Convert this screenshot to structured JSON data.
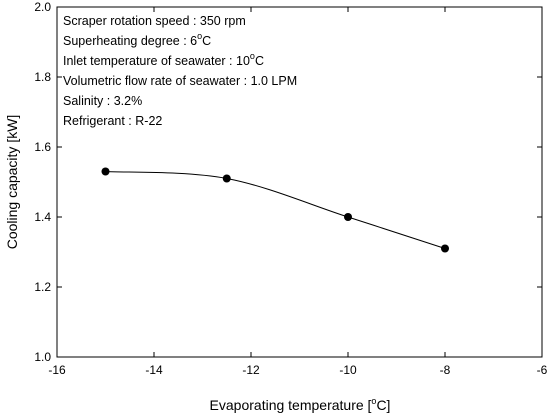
{
  "chart_data": {
    "type": "line",
    "xlabel": "Evaporating temperature [",
    "xlabel_unit_sup": "o",
    "xlabel_unit_tail": "C]",
    "ylabel": "Cooling capacity [kW]",
    "xlim": [
      -16,
      -6
    ],
    "ylim": [
      1.0,
      2.0
    ],
    "xticks": [
      -16,
      -14,
      -12,
      -10,
      -8,
      -6
    ],
    "yticks": [
      1.0,
      1.2,
      1.4,
      1.6,
      1.8,
      2.0
    ],
    "xtick_labels": [
      "-16",
      "-14",
      "-12",
      "-10",
      "-8",
      "-6"
    ],
    "ytick_labels": [
      "1.0",
      "1.2",
      "1.4",
      "1.6",
      "1.8",
      "2.0"
    ],
    "grid": false,
    "series": [
      {
        "x": [
          -15,
          -12.5,
          -10,
          -8
        ],
        "y": [
          1.53,
          1.51,
          1.4,
          1.31
        ]
      }
    ],
    "annotations": [
      {
        "text": "Scraper rotation speed : 350 rpm"
      },
      {
        "text": "Superheating degree : 6",
        "sup": "o",
        "tail": "C"
      },
      {
        "text": "Inlet temperature of seawater : 10",
        "sup": "o",
        "tail": "C"
      },
      {
        "text": "Volumetric flow rate of seawater : 1.0 LPM"
      },
      {
        "text": "Salinity : 3.2%"
      },
      {
        "text": "Refrigerant : R-22"
      }
    ]
  }
}
